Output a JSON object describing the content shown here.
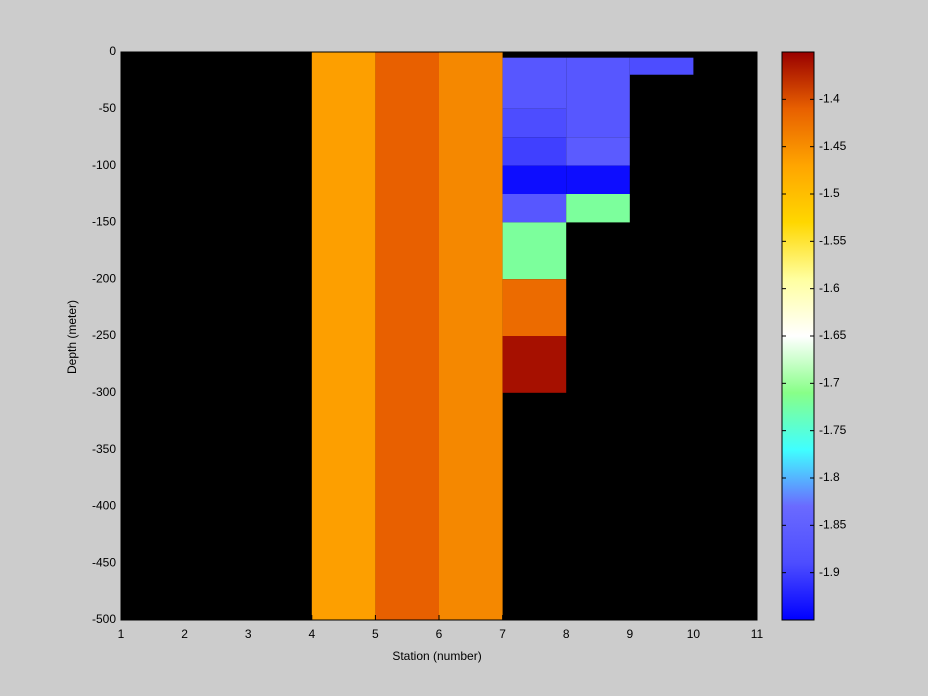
{
  "chart_data": {
    "type": "heatmap",
    "xlabel": "Station (number)",
    "ylabel": "Depth (meter)",
    "xlim": [
      1,
      11
    ],
    "xticks": [
      1,
      2,
      3,
      4,
      5,
      6,
      7,
      8,
      9,
      10,
      11
    ],
    "ylim": [
      -500,
      0
    ],
    "yticks": [
      0,
      -50,
      -100,
      -150,
      -200,
      -250,
      -300,
      -350,
      -400,
      -450,
      -500
    ],
    "nan_color": "#000000",
    "clim": [
      -1.95,
      -1.35
    ],
    "cticks": [
      -1.4,
      -1.45,
      -1.5,
      -1.55,
      -1.6,
      -1.65,
      -1.7,
      -1.75,
      -1.8,
      -1.85,
      -1.9
    ],
    "colormap": [
      "#0000ff",
      "#4d4dff",
      "#6a6aff",
      "#40ffff",
      "#88ff88",
      "#ffffff",
      "#ffffa0",
      "#ffd700",
      "#ffa500",
      "#e86000",
      "#990000"
    ],
    "cells": [
      {
        "x": [
          4,
          5
        ],
        "y": [
          0,
          -500
        ],
        "value": -1.465
      },
      {
        "x": [
          5,
          6
        ],
        "y": [
          0,
          -500
        ],
        "value": -1.41
      },
      {
        "x": [
          6,
          7
        ],
        "y": [
          0,
          -500
        ],
        "value": -1.445
      },
      {
        "x": [
          7,
          8
        ],
        "y": [
          -5,
          -50
        ],
        "value": -1.87
      },
      {
        "x": [
          7,
          8
        ],
        "y": [
          -50,
          -75
        ],
        "value": -1.89
      },
      {
        "x": [
          7,
          8
        ],
        "y": [
          -75,
          -100
        ],
        "value": -1.9
      },
      {
        "x": [
          7,
          8
        ],
        "y": [
          -100,
          -125
        ],
        "value": -1.94
      },
      {
        "x": [
          7,
          8
        ],
        "y": [
          -125,
          -150
        ],
        "value": -1.87
      },
      {
        "x": [
          7,
          8
        ],
        "y": [
          -150,
          -200
        ],
        "value": -1.72
      },
      {
        "x": [
          7,
          8
        ],
        "y": [
          -200,
          -250
        ],
        "value": -1.42
      },
      {
        "x": [
          7,
          8
        ],
        "y": [
          -250,
          -300
        ],
        "value": -1.36
      },
      {
        "x": [
          8,
          9
        ],
        "y": [
          -5,
          -75
        ],
        "value": -1.87
      },
      {
        "x": [
          8,
          9
        ],
        "y": [
          -75,
          -100
        ],
        "value": -1.86
      },
      {
        "x": [
          8,
          9
        ],
        "y": [
          -100,
          -125
        ],
        "value": -1.94
      },
      {
        "x": [
          8,
          9
        ],
        "y": [
          -125,
          -150
        ],
        "value": -1.72
      },
      {
        "x": [
          9,
          10
        ],
        "y": [
          -5,
          -20
        ],
        "value": -1.89
      }
    ]
  }
}
